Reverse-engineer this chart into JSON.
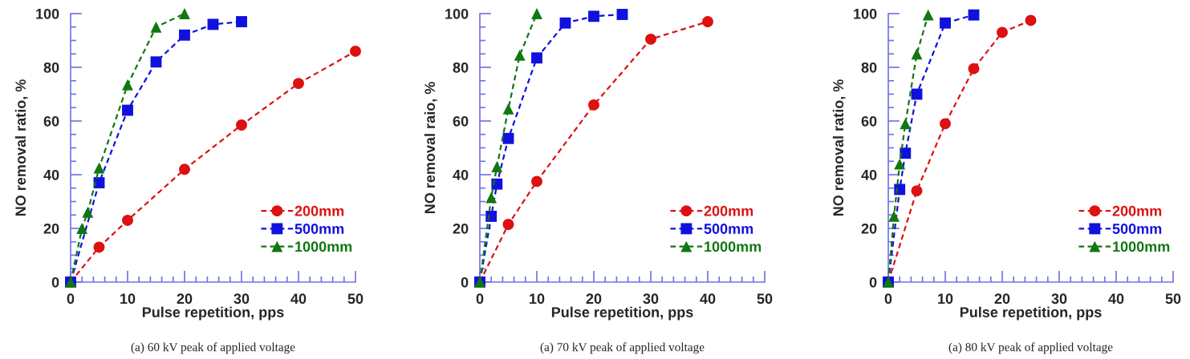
{
  "chart_data": [
    {
      "type": "line",
      "xlabel": "Pulse repetition, pps",
      "ylabel": "NO removal ratio, %",
      "annotations": [
        "(a) 60 kV peak of applied voltage"
      ],
      "xlim": [
        0,
        50
      ],
      "ylim": [
        0,
        100
      ],
      "xticks": [
        0,
        {
          "value": 2,
          "label": null
        },
        {
          "value": 4,
          "label": null
        },
        {
          "value": 6,
          "label": null
        },
        {
          "value": 8,
          "label": null
        },
        10,
        {
          "value": 12,
          "label": null
        },
        {
          "value": 14,
          "label": null
        },
        {
          "value": 16,
          "label": null
        },
        {
          "value": 18,
          "label": null
        },
        20,
        {
          "value": 22,
          "label": null
        },
        {
          "value": 24,
          "label": null
        },
        {
          "value": 26,
          "label": null
        },
        {
          "value": 28,
          "label": null
        },
        30,
        {
          "value": 32,
          "label": null
        },
        {
          "value": 34,
          "label": null
        },
        {
          "value": 36,
          "label": null
        },
        {
          "value": 38,
          "label": null
        },
        40,
        {
          "value": 42,
          "label": null
        },
        {
          "value": 44,
          "label": null
        },
        {
          "value": 46,
          "label": null
        },
        {
          "value": 48,
          "label": null
        },
        50
      ],
      "yticks": [
        0,
        {
          "value": 5,
          "label": null
        },
        {
          "value": 10,
          "label": null
        },
        {
          "value": 15,
          "label": null
        },
        20,
        {
          "value": 25,
          "label": null
        },
        {
          "value": 30,
          "label": null
        },
        {
          "value": 35,
          "label": null
        },
        40,
        {
          "value": 45,
          "label": null
        },
        {
          "value": 50,
          "label": null
        },
        {
          "value": 55,
          "label": null
        },
        60,
        {
          "value": 65,
          "label": null
        },
        {
          "value": 70,
          "label": null
        },
        {
          "value": 75,
          "label": null
        },
        80,
        {
          "value": 85,
          "label": null
        },
        {
          "value": 90,
          "label": null
        },
        {
          "value": 95,
          "label": null
        },
        100
      ],
      "grid": false,
      "legend": "bottom right",
      "line_style": "dashed",
      "series": [
        {
          "name": "200mm",
          "color": "#dd1111",
          "marker": "circle",
          "x": [
            0,
            5,
            10,
            20,
            30,
            40,
            50
          ],
          "values": [
            0,
            13,
            23,
            42,
            58.5,
            74,
            86
          ]
        },
        {
          "name": "500mm",
          "color": "#1111dd",
          "marker": "square",
          "x": [
            0,
            5,
            10,
            15,
            20,
            25,
            30
          ],
          "values": [
            0,
            37,
            64,
            82,
            92,
            96,
            97
          ]
        },
        {
          "name": "1000mm",
          "color": "#117711",
          "marker": "triangle",
          "x": [
            0,
            2,
            3,
            5,
            10,
            15,
            20
          ],
          "values": [
            0,
            20,
            26,
            42.5,
            73.5,
            95,
            100
          ]
        }
      ]
    },
    {
      "type": "line",
      "xlabel": "Pulse repetition, pps",
      "ylabel": "NO removal raio, %",
      "annotations": [
        "(a) 70 kV peak of applied voltage"
      ],
      "xlim": [
        0,
        50
      ],
      "ylim": [
        0,
        100
      ],
      "xticks": [
        0,
        {
          "value": 2,
          "label": null
        },
        {
          "value": 4,
          "label": null
        },
        {
          "value": 6,
          "label": null
        },
        {
          "value": 8,
          "label": null
        },
        10,
        {
          "value": 12,
          "label": null
        },
        {
          "value": 14,
          "label": null
        },
        {
          "value": 16,
          "label": null
        },
        {
          "value": 18,
          "label": null
        },
        20,
        {
          "value": 22,
          "label": null
        },
        {
          "value": 24,
          "label": null
        },
        {
          "value": 26,
          "label": null
        },
        {
          "value": 28,
          "label": null
        },
        30,
        {
          "value": 32,
          "label": null
        },
        {
          "value": 34,
          "label": null
        },
        {
          "value": 36,
          "label": null
        },
        {
          "value": 38,
          "label": null
        },
        40,
        {
          "value": 42,
          "label": null
        },
        {
          "value": 44,
          "label": null
        },
        {
          "value": 46,
          "label": null
        },
        {
          "value": 48,
          "label": null
        },
        50
      ],
      "yticks": [
        0,
        {
          "value": 5,
          "label": null
        },
        {
          "value": 10,
          "label": null
        },
        {
          "value": 15,
          "label": null
        },
        20,
        {
          "value": 25,
          "label": null
        },
        {
          "value": 30,
          "label": null
        },
        {
          "value": 35,
          "label": null
        },
        40,
        {
          "value": 45,
          "label": null
        },
        {
          "value": 50,
          "label": null
        },
        {
          "value": 55,
          "label": null
        },
        60,
        {
          "value": 65,
          "label": null
        },
        {
          "value": 70,
          "label": null
        },
        {
          "value": 75,
          "label": null
        },
        80,
        {
          "value": 85,
          "label": null
        },
        {
          "value": 90,
          "label": null
        },
        {
          "value": 95,
          "label": null
        },
        100
      ],
      "grid": false,
      "legend": "bottom right",
      "line_style": "dashed",
      "series": [
        {
          "name": "200mm",
          "color": "#dd1111",
          "marker": "circle",
          "x": [
            0,
            5,
            10,
            20,
            30,
            40
          ],
          "values": [
            0,
            21.5,
            37.5,
            66,
            90.5,
            97
          ]
        },
        {
          "name": "500mm",
          "color": "#1111dd",
          "marker": "square",
          "x": [
            0,
            2,
            3,
            5,
            10,
            15,
            20,
            25
          ],
          "values": [
            0,
            24.5,
            36.5,
            53.5,
            83.5,
            96.5,
            99,
            99.7
          ]
        },
        {
          "name": "1000mm",
          "color": "#117711",
          "marker": "triangle",
          "x": [
            0,
            2,
            3,
            5,
            7,
            10
          ],
          "values": [
            0,
            31.5,
            43,
            64.5,
            84.5,
            100
          ]
        }
      ]
    },
    {
      "type": "line",
      "xlabel": "Pulse repetition, pps",
      "ylabel": "NO removal ratio, %",
      "annotations": [
        "(a) 80 kV peak of applied voltage"
      ],
      "xlim": [
        0,
        50
      ],
      "ylim": [
        0,
        100
      ],
      "xticks": [
        0,
        {
          "value": 2,
          "label": null
        },
        {
          "value": 4,
          "label": null
        },
        {
          "value": 6,
          "label": null
        },
        {
          "value": 8,
          "label": null
        },
        10,
        {
          "value": 12,
          "label": null
        },
        {
          "value": 14,
          "label": null
        },
        {
          "value": 16,
          "label": null
        },
        {
          "value": 18,
          "label": null
        },
        20,
        {
          "value": 22,
          "label": null
        },
        {
          "value": 24,
          "label": null
        },
        {
          "value": 26,
          "label": null
        },
        {
          "value": 28,
          "label": null
        },
        30,
        {
          "value": 32,
          "label": null
        },
        {
          "value": 34,
          "label": null
        },
        {
          "value": 36,
          "label": null
        },
        {
          "value": 38,
          "label": null
        },
        40,
        {
          "value": 42,
          "label": null
        },
        {
          "value": 44,
          "label": null
        },
        {
          "value": 46,
          "label": null
        },
        {
          "value": 48,
          "label": null
        },
        50
      ],
      "yticks": [
        0,
        {
          "value": 5,
          "label": null
        },
        {
          "value": 10,
          "label": null
        },
        {
          "value": 15,
          "label": null
        },
        20,
        {
          "value": 25,
          "label": null
        },
        {
          "value": 30,
          "label": null
        },
        {
          "value": 35,
          "label": null
        },
        40,
        {
          "value": 45,
          "label": null
        },
        {
          "value": 50,
          "label": null
        },
        {
          "value": 55,
          "label": null
        },
        60,
        {
          "value": 65,
          "label": null
        },
        {
          "value": 70,
          "label": null
        },
        {
          "value": 75,
          "label": null
        },
        80,
        {
          "value": 85,
          "label": null
        },
        {
          "value": 90,
          "label": null
        },
        {
          "value": 95,
          "label": null
        },
        100
      ],
      "grid": false,
      "legend": "bottom right",
      "line_style": "dashed",
      "series": [
        {
          "name": "200mm",
          "color": "#dd1111",
          "marker": "circle",
          "x": [
            0,
            5,
            10,
            15,
            20,
            25
          ],
          "values": [
            0,
            34,
            59,
            79.5,
            93,
            97.5
          ]
        },
        {
          "name": "500mm",
          "color": "#1111dd",
          "marker": "square",
          "x": [
            0,
            2,
            3,
            5,
            10,
            15
          ],
          "values": [
            0,
            34.5,
            48,
            70,
            96.5,
            99.5
          ]
        },
        {
          "name": "1000mm",
          "color": "#117711",
          "marker": "triangle",
          "x": [
            0,
            1,
            2,
            3,
            5,
            7
          ],
          "values": [
            0,
            24.5,
            44,
            59,
            85,
            99.5
          ]
        }
      ]
    }
  ]
}
